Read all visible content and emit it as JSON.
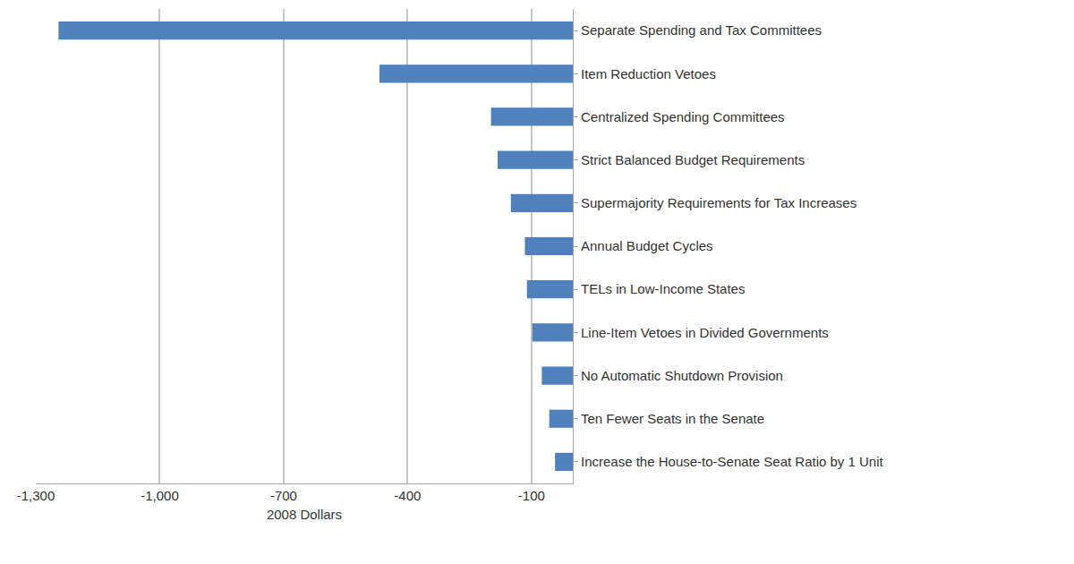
{
  "chart_data": {
    "type": "bar",
    "orientation": "horizontal",
    "categories": [
      "Separate Spending and Tax Committees",
      "Item Reduction Vetoes",
      "Centralized Spending Committees",
      "Strict Balanced Budget Requirements",
      "Supermajority Requirements for Tax Increases",
      "Annual Budget Cycles",
      "TELs in Low-Income States",
      "Line-Item Vetoes in Divided Governments",
      "No Automatic Shutdown Provision",
      "Ten Fewer Seats in the Senate",
      "Increase the House-to-Senate Seat Ratio by 1 Unit"
    ],
    "values": [
      -1245,
      -468,
      -198,
      -182,
      -150,
      -116,
      -111,
      -98,
      -75,
      -57,
      -43
    ],
    "color": "#4f81bd",
    "xlabel": "2008 Dollars",
    "xlim": [
      -1300,
      0
    ],
    "xticks": [
      {
        "value": -1300,
        "label": "-1,300"
      },
      {
        "value": -1000,
        "label": "-1,000"
      },
      {
        "value": -700,
        "label": "-700"
      },
      {
        "value": -400,
        "label": "-400"
      },
      {
        "value": -100,
        "label": "-100"
      }
    ],
    "grid": true
  }
}
